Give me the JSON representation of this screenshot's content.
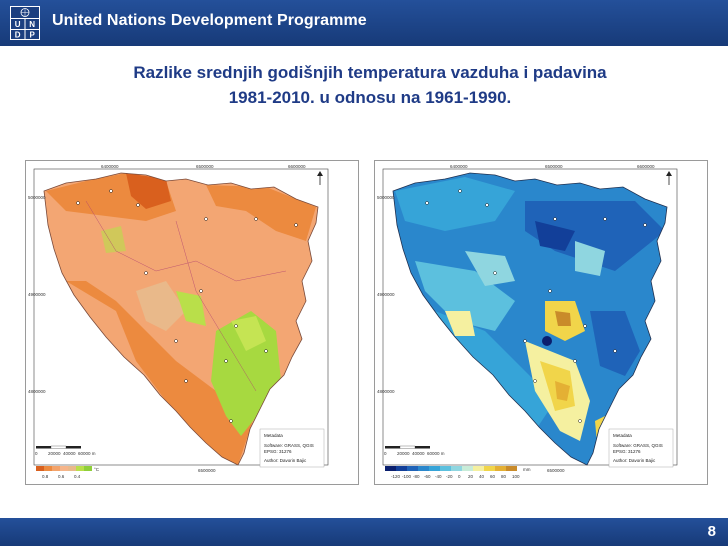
{
  "header": {
    "organization": "United Nations Development Programme"
  },
  "logo": {
    "letters": [
      "U",
      "N",
      "D",
      "P"
    ]
  },
  "slide": {
    "title_line1": "Razlike srednjih godišnjih temperatura vazduha i padavina",
    "title_line2": "1981-2010. u odnosu na 1961-1990.",
    "page_number": "8"
  },
  "map_left": {
    "grid_top": [
      "6400000",
      "6500000",
      "6600000"
    ],
    "grid_bottom": "6500000",
    "grid_side": [
      "5000000",
      "4900000",
      "4800000"
    ],
    "metadata": {
      "title": "Metadata",
      "software": "Software: GRASS, QGIS",
      "epsg": "EPSG: 31276",
      "author": "Author: Davorin Bajic"
    },
    "scale": [
      "0",
      "20000",
      "40000",
      "60000 m"
    ],
    "legend_labels": [
      "0.8",
      "0.6",
      "0.4"
    ],
    "legend_unit": "°C",
    "legend_colors": [
      "#d9601e",
      "#ec8a3f",
      "#f3a36a",
      "#f6b58a",
      "#e9b98a",
      "#b9df4a",
      "#8fcf3a"
    ]
  },
  "map_right": {
    "grid_top": [
      "6400000",
      "6500000",
      "6600000"
    ],
    "grid_bottom": "6500000",
    "grid_side": [
      "5000000",
      "4900000",
      "4800000"
    ],
    "metadata": {
      "title": "Metadata",
      "software": "Software: GRASS, QGIS",
      "epsg": "EPSG: 31276",
      "author": "Author: Davorin Bajic"
    },
    "scale": [
      "0",
      "20000",
      "40000",
      "60000 m"
    ],
    "legend_labels": [
      "-120",
      "-100",
      "-80",
      "-60",
      "-40",
      "-20",
      "0",
      "20",
      "40",
      "60",
      "80",
      "100"
    ],
    "legend_unit": "mm",
    "legend_colors": [
      "#0a1f6e",
      "#123f99",
      "#1f63b8",
      "#2a87cc",
      "#36a4d8",
      "#5cc0de",
      "#8fd6e0",
      "#c8ecd8",
      "#f5f0a0",
      "#f1d54a",
      "#e4b034",
      "#c98b2a"
    ]
  }
}
